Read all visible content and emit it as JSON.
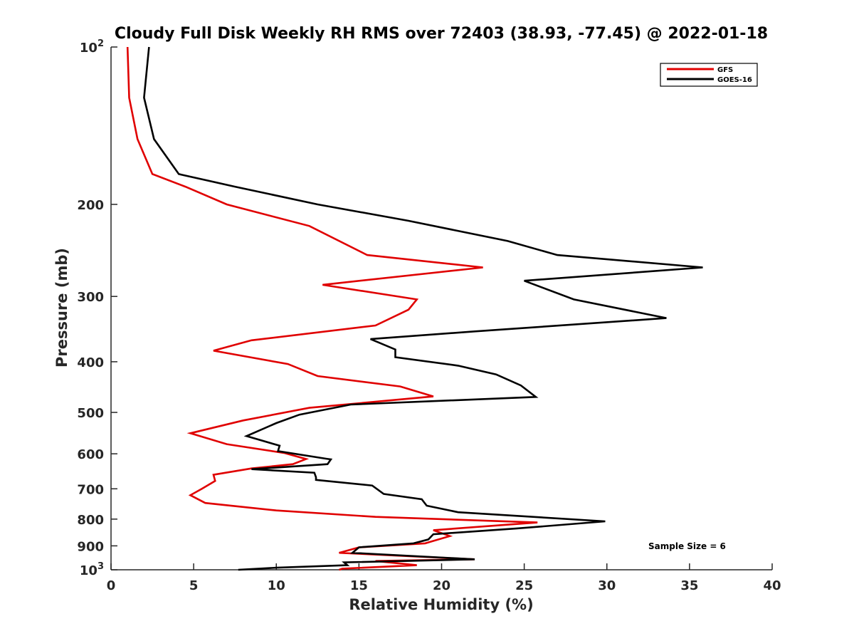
{
  "chart_data": {
    "type": "line",
    "title": "Cloudy Full Disk Weekly RH RMS over 72403 (38.93, -77.45) @ 2022-01-18",
    "xlabel": "Relative Humidity (%)",
    "ylabel": "Pressure (mb)",
    "xlim": [
      0,
      40
    ],
    "ylim": [
      100,
      1000
    ],
    "yscale": "log",
    "y_reversed": true,
    "grid": false,
    "legend_position": "top-right",
    "xticks": [
      0,
      5,
      10,
      15,
      20,
      25,
      30,
      35,
      40
    ],
    "yticks": [
      {
        "value": 100,
        "base": "10",
        "exp": "2"
      },
      {
        "value": 200,
        "label": "200"
      },
      {
        "value": 300,
        "label": "300"
      },
      {
        "value": 400,
        "label": "400"
      },
      {
        "value": 500,
        "label": "500"
      },
      {
        "value": 600,
        "label": "600"
      },
      {
        "value": 700,
        "label": "700"
      },
      {
        "value": 800,
        "label": "800"
      },
      {
        "value": 900,
        "label": "900"
      },
      {
        "value": 1000,
        "base": "10",
        "exp": "3"
      }
    ],
    "annotation": "Sample Size = 6",
    "series": [
      {
        "name": "GFS",
        "color": "#e00000",
        "points": [
          [
            1.0,
            100
          ],
          [
            1.1,
            125
          ],
          [
            1.6,
            150
          ],
          [
            2.5,
            175
          ],
          [
            4.5,
            185
          ],
          [
            7.0,
            200
          ],
          [
            12.0,
            220
          ],
          [
            15.5,
            250
          ],
          [
            22.5,
            264
          ],
          [
            12.8,
            285
          ],
          [
            18.5,
            304
          ],
          [
            18.0,
            318
          ],
          [
            16.0,
            341
          ],
          [
            8.5,
            364
          ],
          [
            6.2,
            381
          ],
          [
            10.7,
            404
          ],
          [
            12.5,
            426
          ],
          [
            17.5,
            446
          ],
          [
            19.5,
            466
          ],
          [
            12.0,
            490
          ],
          [
            8.0,
            518
          ],
          [
            4.8,
            548
          ],
          [
            7.0,
            575
          ],
          [
            10.5,
            598
          ],
          [
            11.8,
            614
          ],
          [
            11.0,
            628
          ],
          [
            8.5,
            640
          ],
          [
            6.2,
            658
          ],
          [
            6.3,
            676
          ],
          [
            5.5,
            700
          ],
          [
            4.8,
            720
          ],
          [
            5.7,
            745
          ],
          [
            10.0,
            770
          ],
          [
            16.0,
            792
          ],
          [
            25.8,
            812
          ],
          [
            19.5,
            840
          ],
          [
            20.5,
            862
          ],
          [
            19.0,
            890
          ],
          [
            15.0,
            906
          ],
          [
            13.8,
            928
          ],
          [
            22.0,
            955
          ],
          [
            16.0,
            962
          ],
          [
            18.5,
            980
          ],
          [
            14.0,
            995
          ],
          [
            13.8,
            1000
          ]
        ]
      },
      {
        "name": "GOES-16",
        "color": "#000000",
        "points": [
          [
            2.3,
            100
          ],
          [
            2.0,
            125
          ],
          [
            2.6,
            150
          ],
          [
            4.1,
            175
          ],
          [
            7.5,
            185
          ],
          [
            12.5,
            200
          ],
          [
            18.0,
            215
          ],
          [
            24.0,
            235
          ],
          [
            27.0,
            250
          ],
          [
            35.8,
            264
          ],
          [
            25.0,
            280
          ],
          [
            28.0,
            304
          ],
          [
            33.6,
            330
          ],
          [
            22.0,
            350
          ],
          [
            15.7,
            362
          ],
          [
            17.2,
            379
          ],
          [
            17.2,
            392
          ],
          [
            21.0,
            407
          ],
          [
            23.3,
            423
          ],
          [
            24.8,
            444
          ],
          [
            25.7,
            467
          ],
          [
            14.5,
            483
          ],
          [
            11.4,
            505
          ],
          [
            10.0,
            524
          ],
          [
            8.2,
            555
          ],
          [
            10.2,
            579
          ],
          [
            10.1,
            593
          ],
          [
            13.0,
            613
          ],
          [
            13.3,
            615
          ],
          [
            13.1,
            628
          ],
          [
            8.5,
            642
          ],
          [
            12.3,
            652
          ],
          [
            12.4,
            665
          ],
          [
            12.4,
            673
          ],
          [
            15.8,
            690
          ],
          [
            16.5,
            716
          ],
          [
            18.8,
            733
          ],
          [
            19.1,
            754
          ],
          [
            21.0,
            776
          ],
          [
            29.9,
            808
          ],
          [
            24.5,
            834
          ],
          [
            19.5,
            855
          ],
          [
            19.2,
            875
          ],
          [
            18.3,
            890
          ],
          [
            15.0,
            906
          ],
          [
            14.6,
            928
          ],
          [
            22.0,
            955
          ],
          [
            14.1,
            968
          ],
          [
            14.3,
            980
          ],
          [
            10.0,
            991
          ],
          [
            7.7,
            1000
          ]
        ]
      }
    ]
  }
}
